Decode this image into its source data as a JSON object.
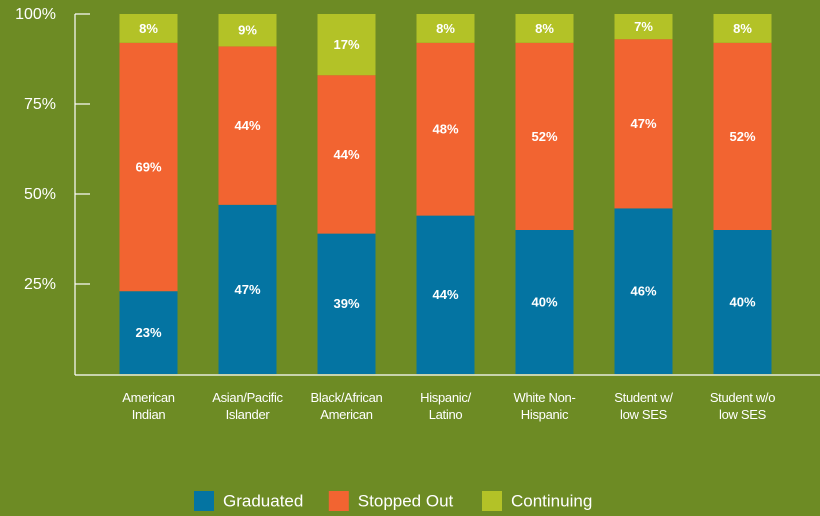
{
  "chart_data": {
    "type": "stacked-bar",
    "categories": [
      "American\nIndian",
      "Asian/Pacific\nIslander",
      "Black/African\nAmerican",
      "Hispanic/\nLatino",
      "White Non-\nHispanic",
      "Student w/\nlow SES",
      "Student w/o\nlow SES"
    ],
    "series": [
      {
        "name": "Graduated",
        "color": "#0474a2",
        "values": [
          23,
          47,
          39,
          44,
          40,
          46,
          40
        ],
        "value_labels": [
          "23%",
          "47%",
          "39%",
          "44%",
          "40%",
          "46%",
          "40%"
        ]
      },
      {
        "name": "Stopped Out",
        "color": "#f26431",
        "values": [
          69,
          44,
          44,
          48,
          52,
          47,
          52
        ],
        "value_labels": [
          "69%",
          "44%",
          "44%",
          "48%",
          "52%",
          "47%",
          "52%"
        ]
      },
      {
        "name": "Continuing",
        "color": "#b3c227",
        "values": [
          8,
          9,
          17,
          8,
          8,
          7,
          8
        ],
        "value_labels": [
          "8%",
          "9%",
          "17%",
          "8%",
          "8%",
          "7%",
          "8%"
        ]
      }
    ],
    "ylim": [
      0,
      100
    ],
    "yticks": [
      {
        "value": 25,
        "label": "25%"
      },
      {
        "value": 50,
        "label": "50%"
      },
      {
        "value": 75,
        "label": "75%"
      },
      {
        "value": 100,
        "label": "100%"
      }
    ],
    "legend": "bottom"
  }
}
